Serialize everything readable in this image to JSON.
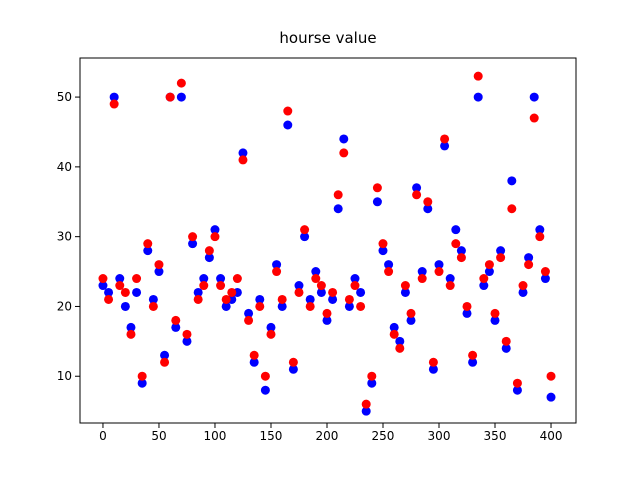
{
  "chart_data": {
    "type": "scatter",
    "title": "hourse value",
    "x": [
      0,
      5,
      10,
      15,
      20,
      25,
      30,
      35,
      40,
      45,
      50,
      55,
      60,
      65,
      70,
      75,
      80,
      85,
      90,
      95,
      100,
      105,
      110,
      115,
      120,
      125,
      130,
      135,
      140,
      145,
      150,
      155,
      160,
      165,
      170,
      175,
      180,
      185,
      190,
      195,
      200,
      205,
      210,
      215,
      220,
      225,
      230,
      235,
      240,
      245,
      250,
      255,
      260,
      265,
      270,
      275,
      280,
      285,
      290,
      295,
      300,
      305,
      310,
      315,
      320,
      325,
      330,
      335,
      340,
      345,
      350,
      355,
      360,
      365,
      370,
      375,
      380,
      385,
      390,
      395,
      400
    ],
    "series": [
      {
        "color": "blue",
        "values": [
          23,
          22,
          50,
          24,
          20,
          17,
          22,
          9,
          28,
          21,
          25,
          13,
          50,
          17,
          50,
          15,
          29,
          22,
          24,
          27,
          31,
          24,
          20,
          21,
          22,
          42,
          19,
          12,
          21,
          8,
          17,
          26,
          20,
          46,
          11,
          23,
          30,
          21,
          25,
          22,
          18,
          21,
          34,
          44,
          20,
          24,
          22,
          5,
          9,
          35,
          28,
          26,
          17,
          15,
          22,
          18,
          37,
          25,
          34,
          11,
          26,
          43,
          24,
          31,
          28,
          19,
          12,
          50,
          23,
          25,
          18,
          28,
          14,
          38,
          8,
          22,
          27,
          50,
          31,
          24,
          7
        ]
      },
      {
        "color": "red",
        "values": [
          24,
          21,
          49,
          23,
          22,
          16,
          24,
          10,
          29,
          20,
          26,
          12,
          50,
          18,
          52,
          16,
          30,
          21,
          23,
          28,
          30,
          23,
          21,
          22,
          24,
          41,
          18,
          13,
          20,
          10,
          16,
          25,
          21,
          48,
          12,
          22,
          31,
          20,
          24,
          23,
          19,
          22,
          36,
          42,
          21,
          23,
          20,
          6,
          10,
          37,
          29,
          25,
          16,
          14,
          23,
          19,
          36,
          24,
          35,
          12,
          25,
          44,
          23,
          29,
          27,
          20,
          13,
          53,
          24,
          26,
          19,
          27,
          15,
          34,
          9,
          23,
          26,
          47,
          30,
          25,
          10
        ]
      }
    ],
    "xlim": [
      -20.5,
      422.3
    ],
    "ylim": [
      3.3,
      55.6
    ],
    "xticks": [
      0,
      50,
      100,
      150,
      200,
      250,
      300,
      350,
      400
    ],
    "yticks": [
      10,
      20,
      30,
      40,
      50
    ]
  }
}
